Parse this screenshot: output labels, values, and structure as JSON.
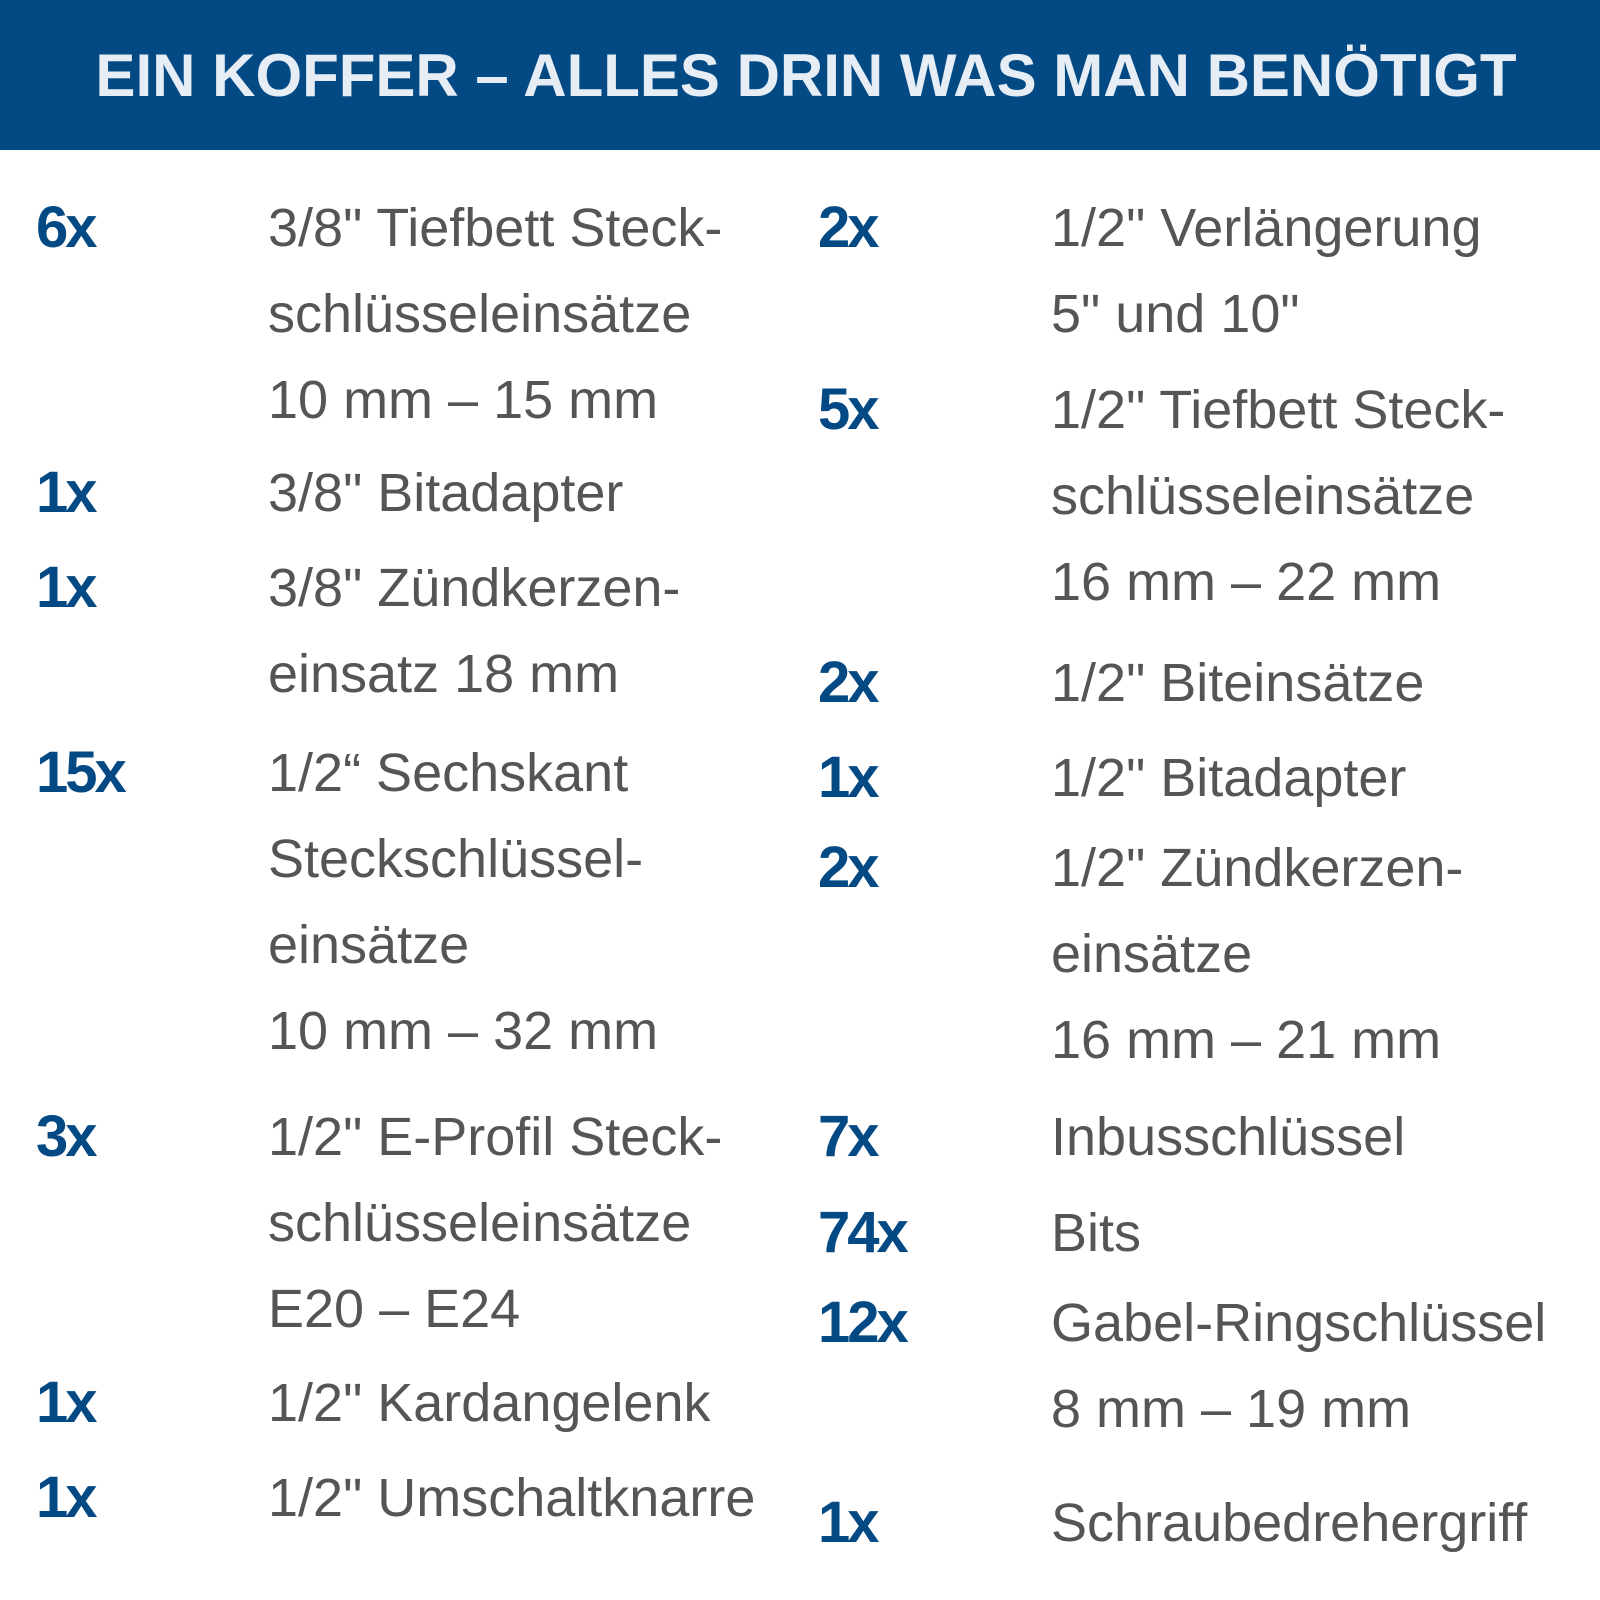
{
  "title": "EIN KOFFER – ALLES DRIN WAS MAN BENÖTIGT",
  "colors": {
    "banner": "#034a85",
    "quantity": "#034a85",
    "text": "#555555"
  },
  "left_items": [
    {
      "qty": "6x",
      "lines": [
        "3/8\" Tiefbett Steck-",
        "schlüsseleinsätze",
        "10 mm – 15 mm"
      ]
    },
    {
      "qty": "1x",
      "lines": [
        "3/8\" Bitadapter"
      ]
    },
    {
      "qty": "1x",
      "lines": [
        "3/8\" Zündkerzen-",
        "einsatz 18 mm"
      ]
    },
    {
      "qty": "15x",
      "lines": [
        "1/2“ Sechskant",
        "Steckschlüssel-",
        "einsätze",
        "10 mm – 32 mm"
      ]
    },
    {
      "qty": "3x",
      "lines": [
        "1/2\" E-Profil Steck-",
        "schlüsseleinsätze",
        "E20 – E24"
      ]
    },
    {
      "qty": "1x",
      "lines": [
        "1/2\" Kardangelenk"
      ]
    },
    {
      "qty": "1x",
      "lines": [
        "1/2\" Umschaltknarre"
      ]
    }
  ],
  "right_items": [
    {
      "qty": "2x",
      "lines": [
        "1/2\" Verlängerung",
        "5\" und 10\""
      ]
    },
    {
      "qty": "5x",
      "lines": [
        "1/2\" Tiefbett Steck-",
        "schlüsseleinsätze",
        "16 mm – 22 mm"
      ]
    },
    {
      "qty": "2x",
      "lines": [
        "1/2\" Biteinsätze"
      ]
    },
    {
      "qty": "1x",
      "lines": [
        "1/2\" Bitadapter"
      ]
    },
    {
      "qty": "2x",
      "lines": [
        "1/2\" Zündkerzen-",
        "einsätze",
        "16 mm – 21 mm"
      ]
    },
    {
      "qty": "7x",
      "lines": [
        "Inbusschlüssel"
      ]
    },
    {
      "qty": "74x",
      "lines": [
        "Bits"
      ]
    },
    {
      "qty": "12x",
      "lines": [
        "Gabel-Ringschlüssel",
        "8 mm – 19 mm"
      ]
    },
    {
      "qty": "1x",
      "lines": [
        "Schraubedrehergriff"
      ]
    }
  ]
}
